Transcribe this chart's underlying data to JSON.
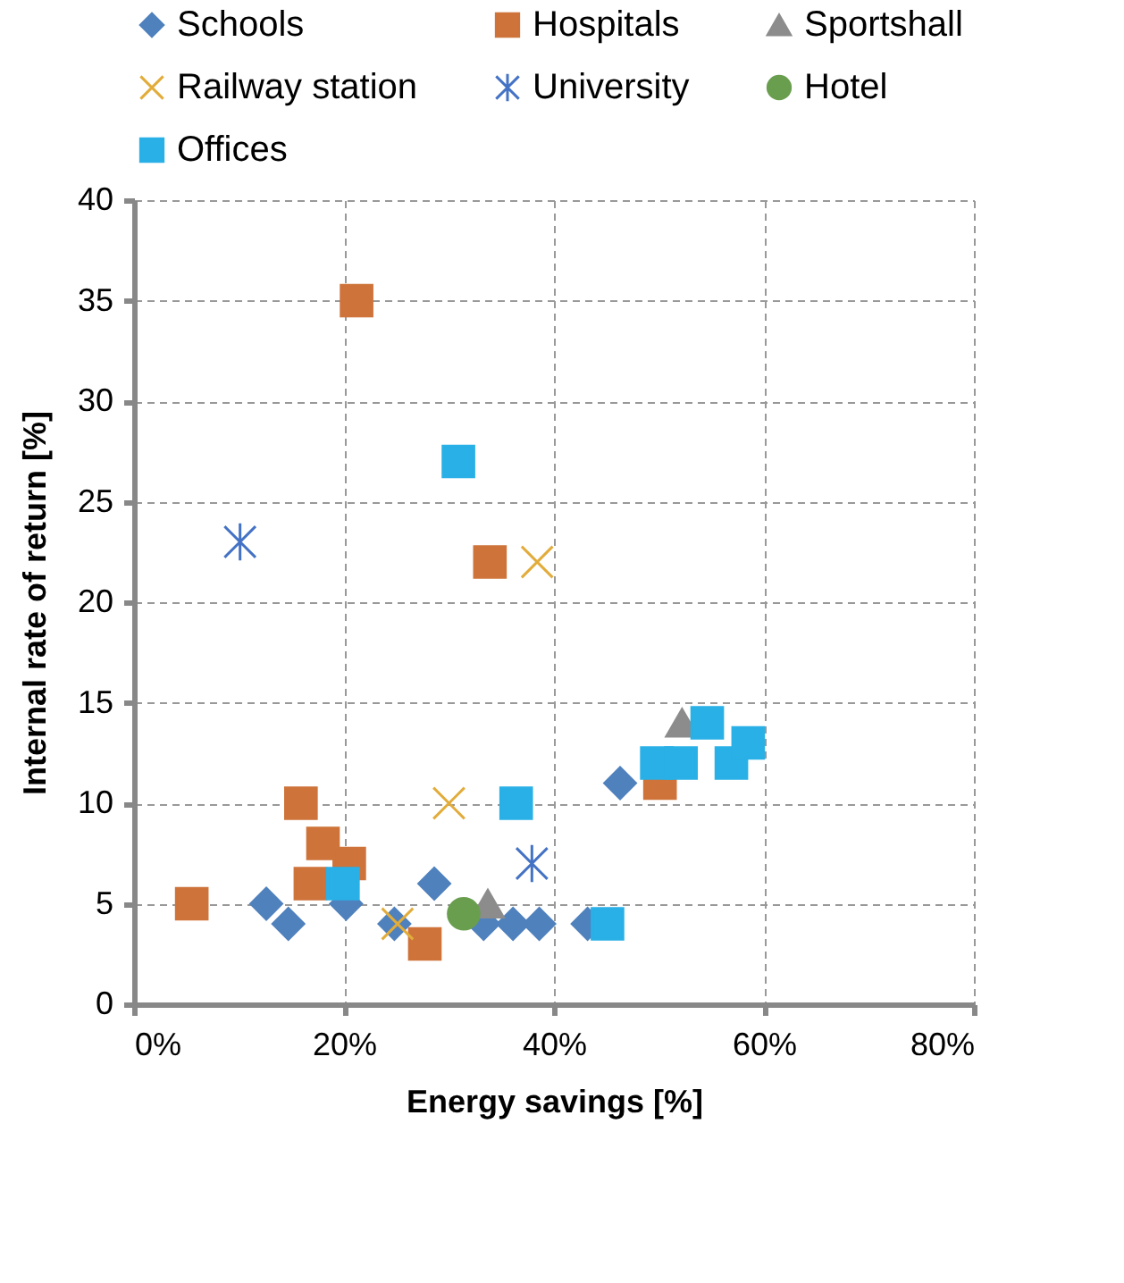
{
  "chart_data": {
    "type": "scatter",
    "xlabel": "Energy savings [%]",
    "ylabel": "Internal rate of return [%]",
    "xlim": [
      0,
      80
    ],
    "xticks": [
      {
        "value": 0,
        "label": "0%"
      },
      {
        "value": 20,
        "label": "20%"
      },
      {
        "value": 40,
        "label": "40%"
      },
      {
        "value": 60,
        "label": "60%"
      },
      {
        "value": 80,
        "label": "80%"
      }
    ],
    "ylim": [
      0,
      40
    ],
    "yticks": [
      0,
      5,
      10,
      15,
      20,
      25,
      30,
      35,
      40
    ],
    "grid": true,
    "legend": "top",
    "series": [
      {
        "name": "Schools",
        "color": "#4f81bd",
        "marker": "diamond",
        "x": [
          12.6,
          14.7,
          20.2,
          24.8,
          28.6,
          33.3,
          36.1,
          38.6,
          43.2,
          46.3
        ],
        "values": [
          5,
          4,
          5,
          4,
          6,
          4,
          4,
          4,
          4,
          11
        ]
      },
      {
        "name": "Hospitals",
        "color": "#ce733a",
        "marker": "square",
        "x": [
          5.5,
          15.9,
          16.8,
          18.0,
          20.5,
          21.2,
          27.7,
          33.9,
          50.1
        ],
        "values": [
          5,
          10,
          6,
          8,
          7,
          35,
          3,
          22,
          11
        ]
      },
      {
        "name": "Sportshall",
        "color": "#8c8c8c",
        "marker": "triangle",
        "x": [
          33.7,
          52.2
        ],
        "values": [
          5,
          14
        ]
      },
      {
        "name": "Railway station",
        "color": "#e2ac3b",
        "marker": "cross",
        "x": [
          25.1,
          30.0,
          38.4
        ],
        "values": [
          4,
          10,
          22
        ]
      },
      {
        "name": "University",
        "color": "#4472c4",
        "marker": "cross",
        "x": [
          10.1,
          37.9
        ],
        "values": [
          23,
          7
        ]
      },
      {
        "name": "Hotel",
        "color": "#6a9e4f",
        "marker": "circle",
        "x": [
          31.4
        ],
        "values": [
          4.5
        ]
      },
      {
        "name": "Offices",
        "color": "#29b0e6",
        "marker": "square",
        "x": [
          19.9,
          30.9,
          36.4,
          45.1,
          49.8,
          52.1,
          54.6,
          56.9,
          58.5
        ],
        "values": [
          6,
          27,
          10,
          4,
          12,
          12,
          14,
          12,
          13
        ]
      }
    ]
  }
}
